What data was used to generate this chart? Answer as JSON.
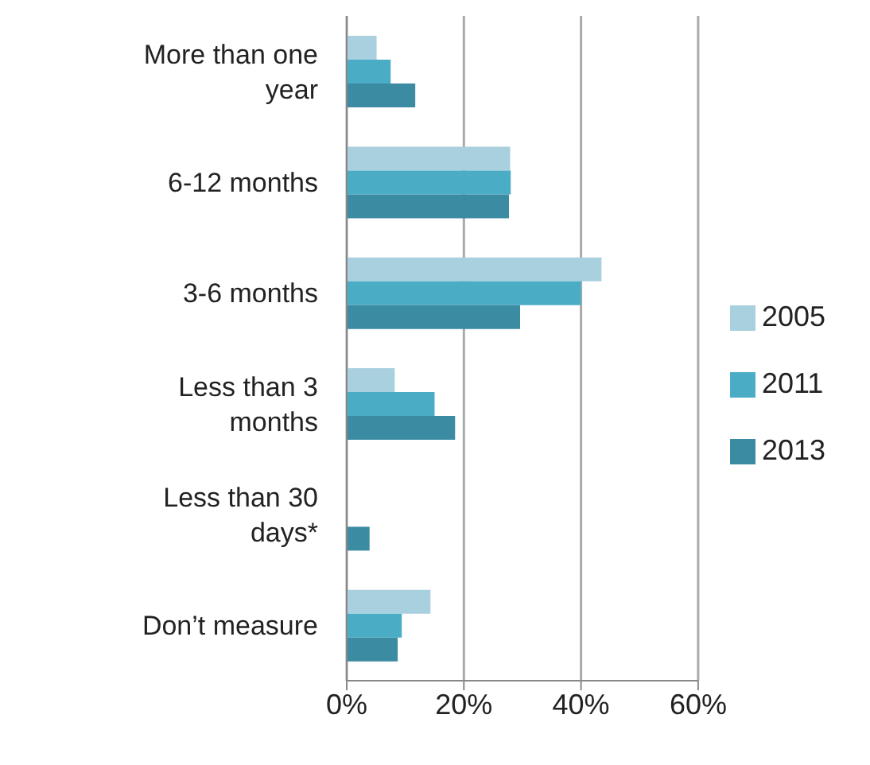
{
  "chart_data": {
    "type": "bar",
    "orientation": "horizontal",
    "categories": [
      "More than one year",
      "6-12 months",
      "3-6 months",
      "Less than 3 months",
      "Less than 30 days*",
      "Don’t measure"
    ],
    "series": [
      {
        "name": "2005",
        "color": "#a9d0de",
        "values": [
          5.1,
          27.9,
          43.5,
          8.2,
          null,
          14.3
        ]
      },
      {
        "name": "2011",
        "color": "#4bacc6",
        "values": [
          7.5,
          28,
          40,
          15,
          null,
          9.4
        ]
      },
      {
        "name": "2013",
        "color": "#3b8ba3",
        "values": [
          11.7,
          27.7,
          29.6,
          18.5,
          3.9,
          8.7
        ]
      }
    ],
    "xlim": [
      0,
      60
    ],
    "xticks": [
      {
        "value": 0,
        "label": "0%"
      },
      {
        "value": 20,
        "label": "20%"
      },
      {
        "value": 40,
        "label": "40%"
      },
      {
        "value": 60,
        "label": "60%"
      }
    ],
    "grid": "x",
    "legend": "right"
  }
}
